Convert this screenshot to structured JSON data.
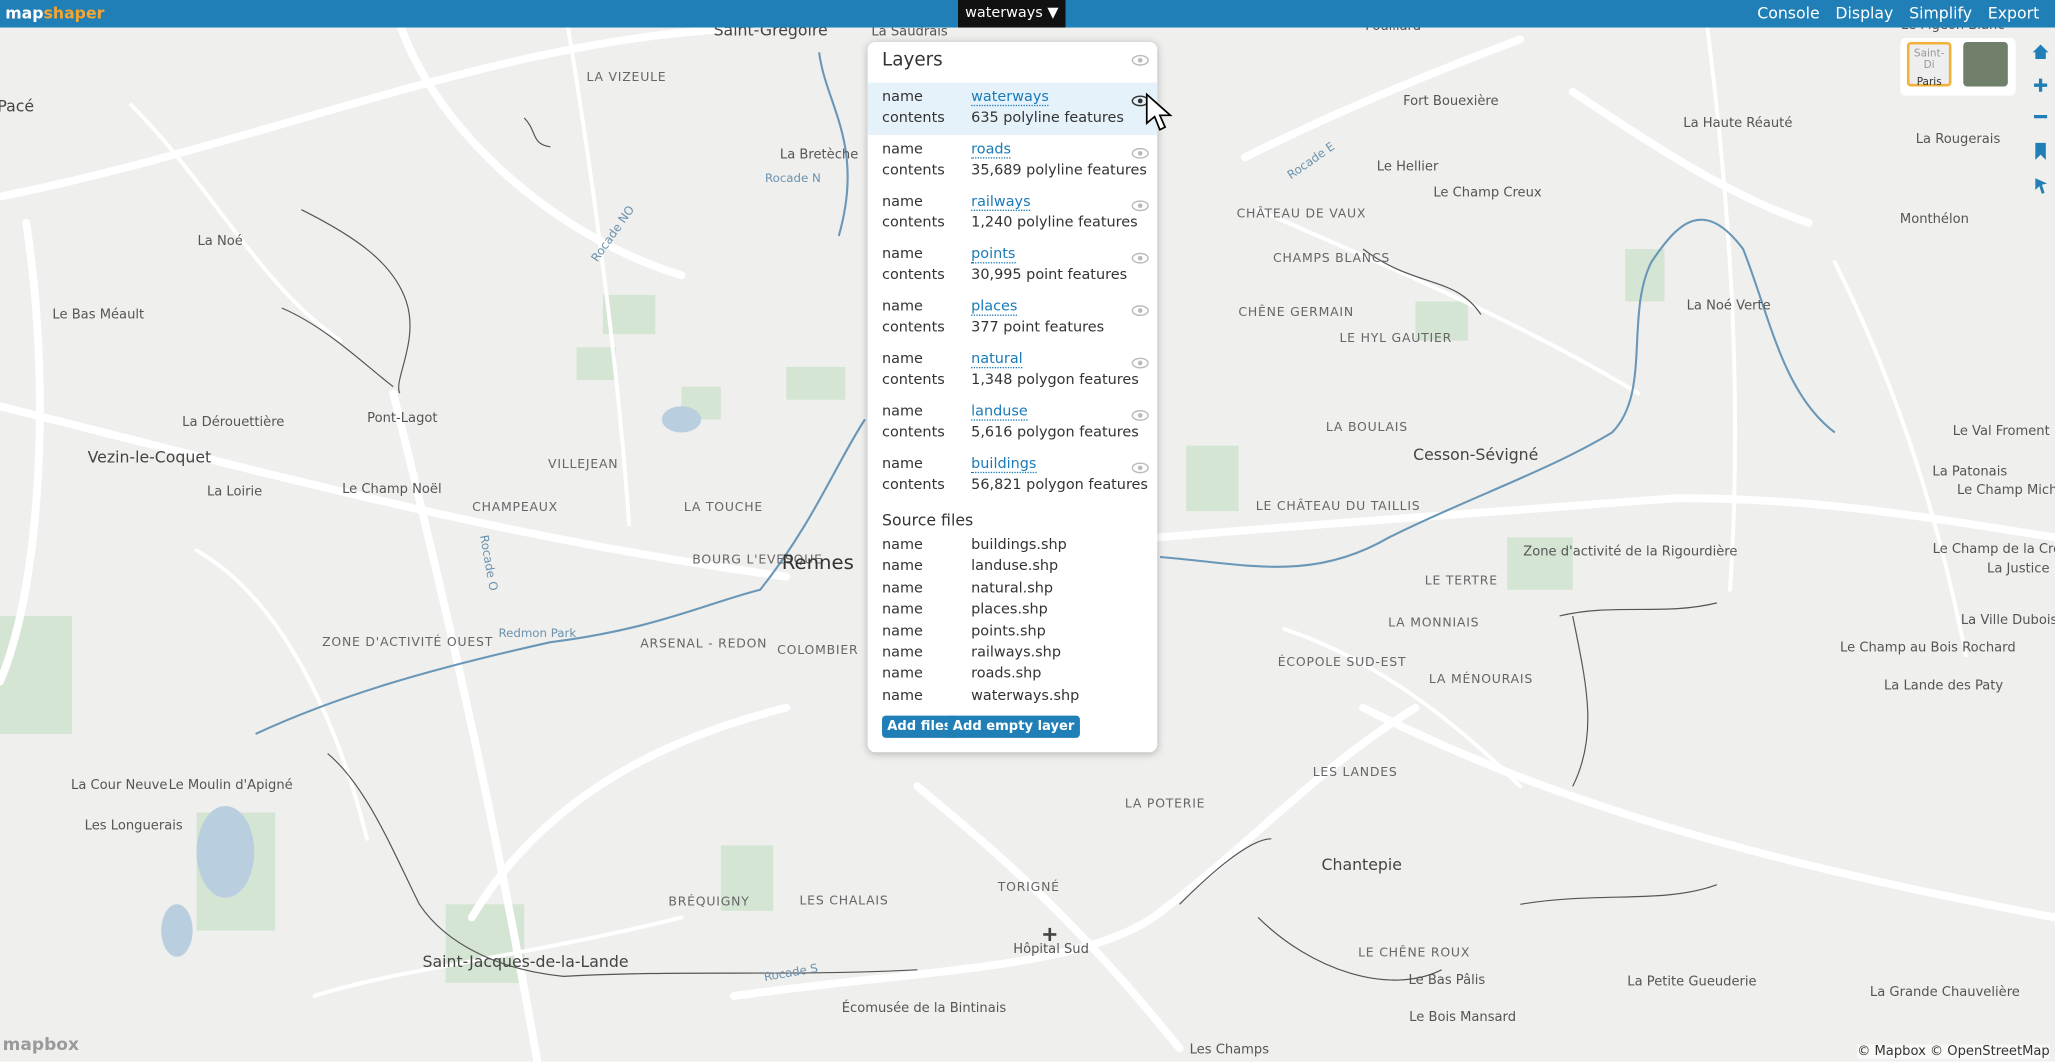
{
  "header": {
    "logo_map": "map",
    "logo_shaper": "shaper",
    "layer_menu": "waterways ▼",
    "menu": [
      "Console",
      "Display",
      "Simplify",
      "Export"
    ]
  },
  "layers_panel": {
    "title": "Layers",
    "field_name": "name",
    "field_contents": "contents",
    "layers": [
      {
        "name": "waterways",
        "contents": "635 polyline features"
      },
      {
        "name": "roads",
        "contents": "35,689 polyline features"
      },
      {
        "name": "railways",
        "contents": "1,240 polyline features"
      },
      {
        "name": "points",
        "contents": "30,995 point features"
      },
      {
        "name": "places",
        "contents": "377 point features"
      },
      {
        "name": "natural",
        "contents": "1,348 polygon features"
      },
      {
        "name": "landuse",
        "contents": "5,616 polygon features"
      },
      {
        "name": "buildings",
        "contents": "56,821 polygon features"
      }
    ],
    "source_title": "Source files",
    "source_files": [
      "buildings.shp",
      "landuse.shp",
      "natural.shp",
      "places.shp",
      "points.shp",
      "railways.shp",
      "roads.shp",
      "waterways.shp"
    ],
    "buttons": [
      "Add files",
      "Add empty layer"
    ]
  },
  "map": {
    "labels": [
      "Saint-Grégoire",
      "La Saudrais",
      "LA VIZEULE",
      "Pacé",
      "La Bretèche",
      "Rocade N",
      "La Noé",
      "Rocade NO",
      "Le Bas Méault",
      "La Dérouettière",
      "Pont-Lagot",
      "Vezin-le-Coquet",
      "VILLEJEAN",
      "La Loirie",
      "Le Champ Noël",
      "CHAMPEAUX",
      "LA TOUCHE",
      "BOURG L'EVESQUE",
      "Rennes",
      "ZONE D'ACTIVITÉ OUEST",
      "Rocade O",
      "Redmon Park",
      "ARSENAL - REDON",
      "COLOMBIER",
      "La Cour Neuve",
      "Le Moulin d'Apigné",
      "Les Longuerais",
      "BRÉQUIGNY",
      "LES CHALAIS",
      "TORIGNÉ",
      "Hôpital Sud",
      "Rocade S",
      "Écomusée de la Bintinais",
      "Saint-Jacques-de-la-Lande",
      "Les Champs",
      "LA POTERIE",
      "LES LANDES",
      "Chantepie",
      "LE CHÊNE ROUX",
      "Le Bas Pâlis",
      "La Petite Gueuderie",
      "La Grande Chauvelière",
      "Le Bois Mansard",
      "Fouillard",
      "Fort Bouexière",
      "Le Hellier",
      "Le Champ Creux",
      "Rocade E",
      "CHÂTEAU DE VAUX",
      "CHAMPS BLANCS",
      "CHÊNE GERMAIN",
      "LE HYL GAUTIER",
      "LA BOULAIS",
      "Cesson-Sévigné",
      "LE CHÂTEAU DU TAILLIS",
      "LE TERTRE",
      "LA MONNIAIS",
      "ÉCOPOLE SUD-EST",
      "LA MÉNOURAIS",
      "Zone d'activité de la Rigourdière",
      "La Haute Réauté",
      "La Rougerais",
      "Monthélon",
      "La Noé Verte",
      "Le Val Froment",
      "La Patonais",
      "Le Champ Michel",
      "Le Champ de la Croix",
      "La Justice",
      "La Ville Dubois",
      "Le Champ au Bois Rochard",
      "La Lande des Paty",
      "Le Pigeon Blanc"
    ],
    "attribution": "© Mapbox © OpenStreetMap",
    "logo": "mapbox",
    "basemaps": [
      "Saint-Di",
      "Paris"
    ]
  }
}
